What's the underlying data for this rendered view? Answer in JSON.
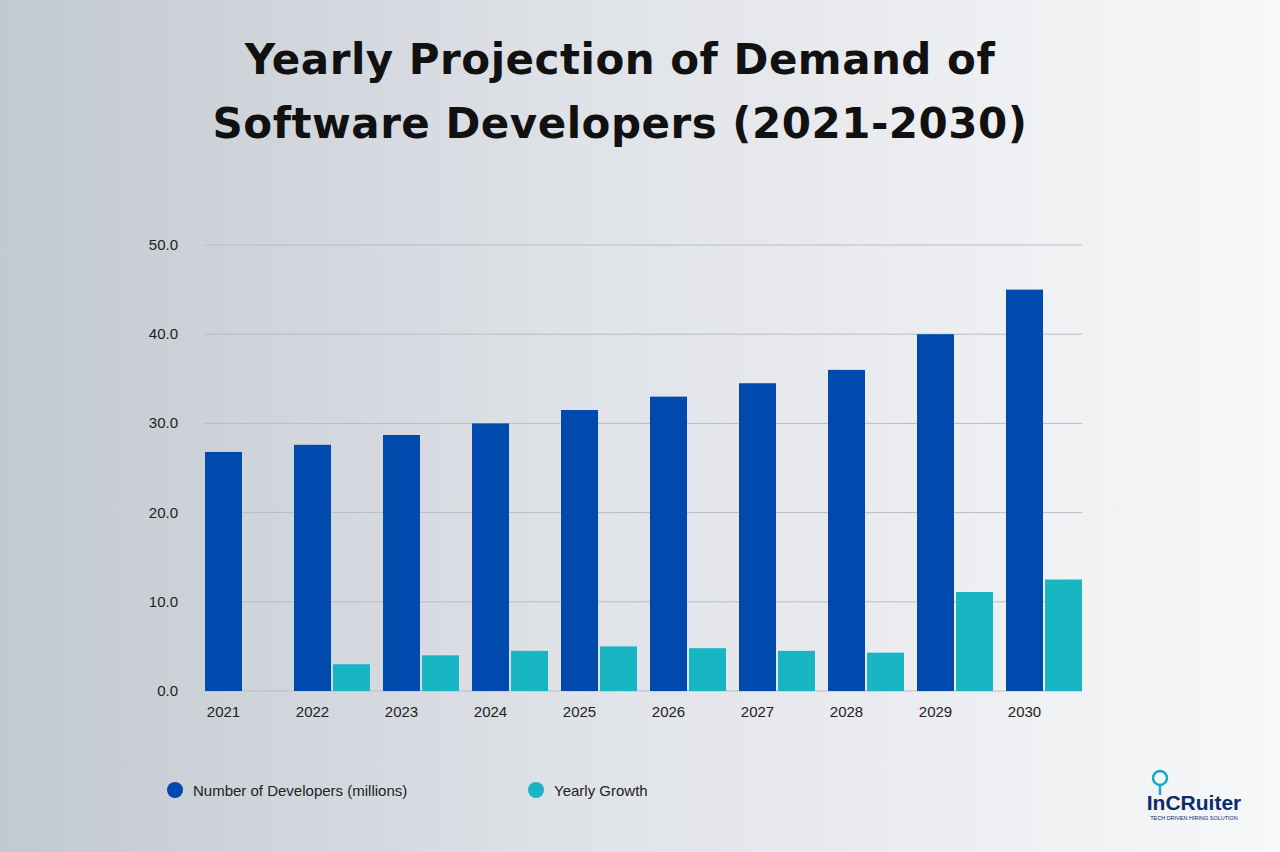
{
  "chart_data": {
    "type": "bar",
    "title": "Yearly Projection of Demand of Software Developers (2021-2030)",
    "categories": [
      "2021",
      "2022",
      "2023",
      "2024",
      "2025",
      "2026",
      "2027",
      "2028",
      "2029",
      "2030"
    ],
    "series": [
      {
        "name": "Number of Developers (millions)",
        "color": "#004aad",
        "values": [
          26.8,
          27.6,
          28.7,
          30.0,
          31.5,
          33.0,
          34.5,
          36.0,
          40.0,
          45.0
        ]
      },
      {
        "name": "Yearly Growth",
        "color": "#17b6c2",
        "values": [
          null,
          3.0,
          4.0,
          4.5,
          5.0,
          4.8,
          4.5,
          4.3,
          11.1,
          12.5
        ]
      }
    ],
    "ylim": [
      0,
      50
    ],
    "yticks": [
      {
        "value": 0,
        "label": "0.0"
      },
      {
        "value": 10,
        "label": "10.0"
      },
      {
        "value": 20,
        "label": "20.0"
      },
      {
        "value": 30,
        "label": "30.0"
      },
      {
        "value": 40,
        "label": "40.0"
      },
      {
        "value": 50,
        "label": "50.0"
      }
    ],
    "grid": true,
    "legend": "bottom",
    "annotations": [
      "InCRuiter",
      "TECH DRIVEN HIRING SOLUTION"
    ]
  }
}
